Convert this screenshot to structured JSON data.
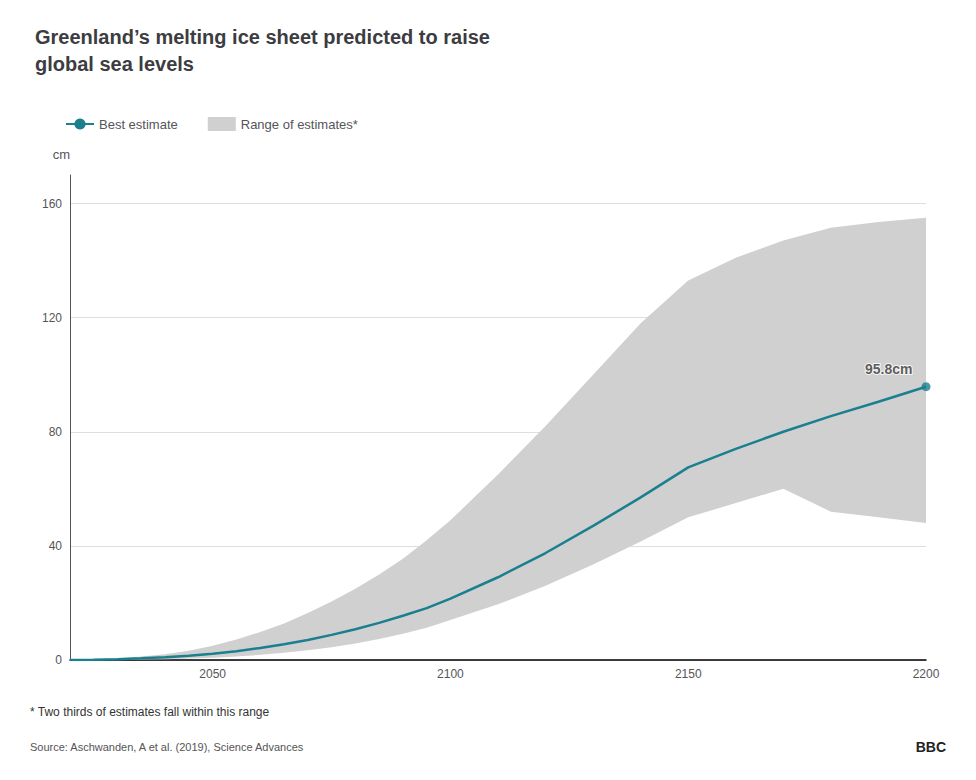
{
  "chart_data": {
    "type": "line",
    "title": "Greenland’s melting ice sheet predicted to raise\nglobal sea levels",
    "ylabel": "cm",
    "footnote": "* Two thirds of estimates fall within this range",
    "source": "Source: Aschwanden, A et al. (2019), Science Advances",
    "logo": "BBC",
    "x": [
      2020,
      2025,
      2030,
      2035,
      2040,
      2045,
      2050,
      2055,
      2060,
      2065,
      2070,
      2075,
      2080,
      2085,
      2090,
      2095,
      2100,
      2110,
      2120,
      2130,
      2140,
      2150,
      2160,
      2170,
      2180,
      2190,
      2200
    ],
    "series": [
      {
        "name": "Best estimate",
        "type": "line",
        "color": "#1a7f8e",
        "values": [
          0,
          0.1,
          0.3,
          0.6,
          1.0,
          1.5,
          2.2,
          3.1,
          4.2,
          5.5,
          7.0,
          8.8,
          10.8,
          13.0,
          15.5,
          18.2,
          21.5,
          29.0,
          37.5,
          47.0,
          57.0,
          67.5,
          74.0,
          80.0,
          85.5,
          90.5,
          95.8
        ]
      },
      {
        "name": "Range of estimates*",
        "type": "range",
        "color": "#d0d0d0",
        "upper": [
          0,
          0.2,
          0.6,
          1.2,
          2.0,
          3.2,
          5.0,
          7.2,
          9.8,
          12.8,
          16.5,
          20.5,
          25.0,
          30.0,
          35.5,
          42.0,
          49.0,
          65.0,
          82.0,
          100.0,
          118.0,
          133.0,
          141.0,
          147.0,
          151.5,
          153.5,
          155.0
        ],
        "lower": [
          0,
          0.05,
          0.1,
          0.2,
          0.3,
          0.5,
          0.8,
          1.2,
          1.8,
          2.5,
          3.4,
          4.5,
          5.8,
          7.4,
          9.2,
          11.3,
          14.0,
          19.5,
          26.0,
          33.5,
          41.5,
          50.0,
          55.0,
          60.0,
          52.0,
          50.0,
          48.0
        ]
      }
    ],
    "annotations": [
      {
        "text": "95.8cm",
        "x": 2200,
        "y": 95.8
      }
    ],
    "xlim": [
      2020,
      2200
    ],
    "xticks": [
      2050,
      2100,
      2150,
      2200
    ],
    "ylim": [
      0,
      170
    ],
    "yticks": [
      0,
      40,
      80,
      120,
      160
    ],
    "grid": true,
    "legend": "upper left"
  }
}
